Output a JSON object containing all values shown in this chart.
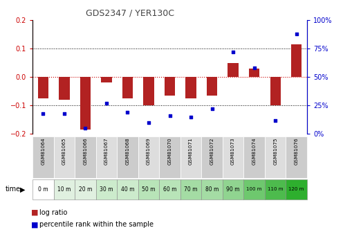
{
  "title": "GDS2347 / YER130C",
  "samples": [
    "GSM81064",
    "GSM81065",
    "GSM81066",
    "GSM81067",
    "GSM81068",
    "GSM81069",
    "GSM81070",
    "GSM81071",
    "GSM81072",
    "GSM81073",
    "GSM81074",
    "GSM81075",
    "GSM81076"
  ],
  "times": [
    "0 m",
    "10 m",
    "20 m",
    "30 m",
    "40 m",
    "50 m",
    "60 m",
    "70 m",
    "80 m",
    "90 m",
    "100 m",
    "110 m",
    "120 m"
  ],
  "log_ratio": [
    -0.075,
    -0.08,
    -0.185,
    -0.02,
    -0.075,
    -0.1,
    -0.065,
    -0.075,
    -0.065,
    0.05,
    0.03,
    -0.1,
    0.115
  ],
  "percentile": [
    18,
    18,
    5,
    27,
    19,
    10,
    16,
    15,
    22,
    72,
    58,
    12,
    88
  ],
  "bar_color": "#b22222",
  "dot_color": "#0000cc",
  "ylim_left": [
    -0.2,
    0.2
  ],
  "ylim_right": [
    0,
    100
  ],
  "yticks_left": [
    -0.2,
    -0.1,
    0.0,
    0.1,
    0.2
  ],
  "yticks_right": [
    0,
    25,
    50,
    75,
    100
  ],
  "ytick_labels_right": [
    "0%",
    "25%",
    "50%",
    "75%",
    "100%"
  ],
  "left_tick_color": "#cc0000",
  "right_tick_color": "#0000cc",
  "bar_width": 0.5,
  "time_colors": [
    "#ffffff",
    "#e0f0e0",
    "#e0f0e0",
    "#ccebcc",
    "#ccebcc",
    "#b8e4b8",
    "#b8e4b8",
    "#a4dca4",
    "#a4dca4",
    "#90d490",
    "#6ec86e",
    "#4dbb4d",
    "#2eaf2e"
  ],
  "sample_colors_even": "#cccccc",
  "sample_colors_odd": "#dddddd",
  "title_color": "#444444",
  "zero_line_color": "#cc0000",
  "grid_line_color": "#000000"
}
